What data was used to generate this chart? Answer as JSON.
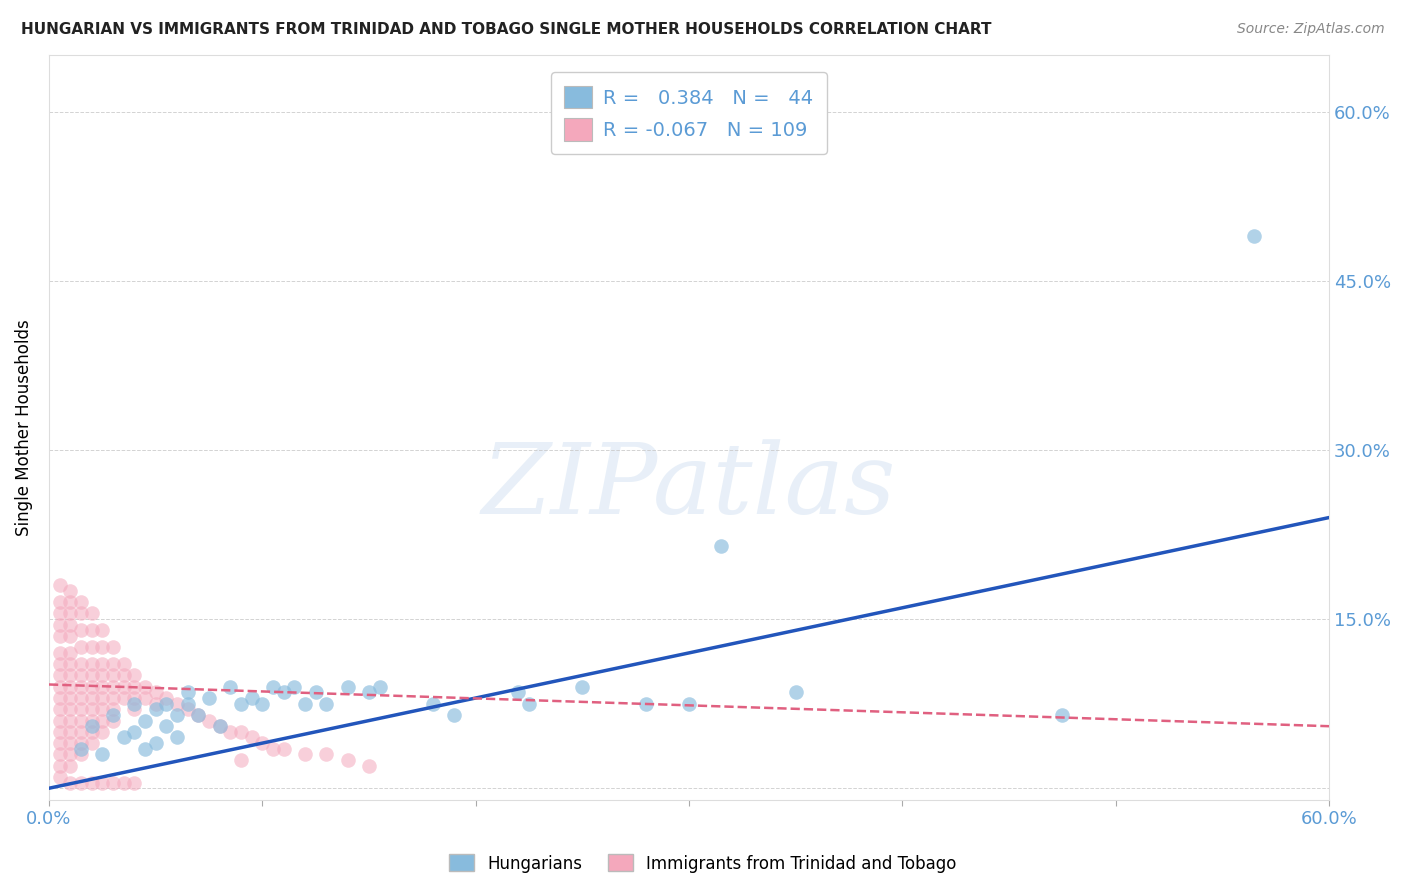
{
  "title": "HUNGARIAN VS IMMIGRANTS FROM TRINIDAD AND TOBAGO SINGLE MOTHER HOUSEHOLDS CORRELATION CHART",
  "source": "Source: ZipAtlas.com",
  "ylabel": "Single Mother Households",
  "xlim": [
    0.0,
    0.6
  ],
  "ylim": [
    -0.01,
    0.65
  ],
  "xticks": [
    0.0,
    0.1,
    0.2,
    0.3,
    0.4,
    0.5,
    0.6
  ],
  "yticks": [
    0.0,
    0.15,
    0.3,
    0.45,
    0.6
  ],
  "ytick_labels_right": [
    "",
    "15.0%",
    "30.0%",
    "45.0%",
    "60.0%"
  ],
  "xtick_labels": [
    "0.0%",
    "",
    "",
    "",
    "",
    "",
    "60.0%"
  ],
  "axis_color": "#5b9bd5",
  "grid_color": "#c8c8c8",
  "blue_color": "#88bbdd",
  "pink_color": "#f4a8bc",
  "blue_line_color": "#2255bb",
  "pink_line_color": "#e06080",
  "legend_R_blue": " 0.384",
  "legend_N_blue": " 44",
  "legend_R_pink": "-0.067",
  "legend_N_pink": "109",
  "legend_label_blue": "Hungarians",
  "legend_label_pink": "Immigrants from Trinidad and Tobago",
  "watermark": "ZIPatlas",
  "blue_scatter": [
    [
      0.015,
      0.035
    ],
    [
      0.02,
      0.055
    ],
    [
      0.025,
      0.03
    ],
    [
      0.03,
      0.065
    ],
    [
      0.035,
      0.045
    ],
    [
      0.04,
      0.075
    ],
    [
      0.04,
      0.05
    ],
    [
      0.045,
      0.06
    ],
    [
      0.045,
      0.035
    ],
    [
      0.05,
      0.07
    ],
    [
      0.05,
      0.04
    ],
    [
      0.055,
      0.075
    ],
    [
      0.055,
      0.055
    ],
    [
      0.06,
      0.065
    ],
    [
      0.06,
      0.045
    ],
    [
      0.065,
      0.085
    ],
    [
      0.065,
      0.075
    ],
    [
      0.07,
      0.065
    ],
    [
      0.075,
      0.08
    ],
    [
      0.08,
      0.055
    ],
    [
      0.085,
      0.09
    ],
    [
      0.09,
      0.075
    ],
    [
      0.095,
      0.08
    ],
    [
      0.1,
      0.075
    ],
    [
      0.105,
      0.09
    ],
    [
      0.11,
      0.085
    ],
    [
      0.115,
      0.09
    ],
    [
      0.12,
      0.075
    ],
    [
      0.125,
      0.085
    ],
    [
      0.13,
      0.075
    ],
    [
      0.14,
      0.09
    ],
    [
      0.15,
      0.085
    ],
    [
      0.155,
      0.09
    ],
    [
      0.18,
      0.075
    ],
    [
      0.19,
      0.065
    ],
    [
      0.22,
      0.085
    ],
    [
      0.225,
      0.075
    ],
    [
      0.25,
      0.09
    ],
    [
      0.28,
      0.075
    ],
    [
      0.3,
      0.075
    ],
    [
      0.315,
      0.215
    ],
    [
      0.35,
      0.085
    ],
    [
      0.475,
      0.065
    ],
    [
      0.565,
      0.49
    ]
  ],
  "pink_scatter": [
    [
      0.005,
      0.18
    ],
    [
      0.005,
      0.165
    ],
    [
      0.005,
      0.155
    ],
    [
      0.005,
      0.145
    ],
    [
      0.005,
      0.135
    ],
    [
      0.005,
      0.12
    ],
    [
      0.005,
      0.11
    ],
    [
      0.005,
      0.1
    ],
    [
      0.005,
      0.09
    ],
    [
      0.005,
      0.08
    ],
    [
      0.005,
      0.07
    ],
    [
      0.005,
      0.06
    ],
    [
      0.005,
      0.05
    ],
    [
      0.005,
      0.04
    ],
    [
      0.005,
      0.03
    ],
    [
      0.005,
      0.02
    ],
    [
      0.01,
      0.175
    ],
    [
      0.01,
      0.165
    ],
    [
      0.01,
      0.155
    ],
    [
      0.01,
      0.145
    ],
    [
      0.01,
      0.135
    ],
    [
      0.01,
      0.12
    ],
    [
      0.01,
      0.11
    ],
    [
      0.01,
      0.1
    ],
    [
      0.01,
      0.09
    ],
    [
      0.01,
      0.08
    ],
    [
      0.01,
      0.07
    ],
    [
      0.01,
      0.06
    ],
    [
      0.01,
      0.05
    ],
    [
      0.01,
      0.04
    ],
    [
      0.01,
      0.03
    ],
    [
      0.01,
      0.02
    ],
    [
      0.015,
      0.165
    ],
    [
      0.015,
      0.155
    ],
    [
      0.015,
      0.14
    ],
    [
      0.015,
      0.125
    ],
    [
      0.015,
      0.11
    ],
    [
      0.015,
      0.1
    ],
    [
      0.015,
      0.09
    ],
    [
      0.015,
      0.08
    ],
    [
      0.015,
      0.07
    ],
    [
      0.015,
      0.06
    ],
    [
      0.015,
      0.05
    ],
    [
      0.015,
      0.04
    ],
    [
      0.015,
      0.03
    ],
    [
      0.02,
      0.155
    ],
    [
      0.02,
      0.14
    ],
    [
      0.02,
      0.125
    ],
    [
      0.02,
      0.11
    ],
    [
      0.02,
      0.1
    ],
    [
      0.02,
      0.09
    ],
    [
      0.02,
      0.08
    ],
    [
      0.02,
      0.07
    ],
    [
      0.02,
      0.06
    ],
    [
      0.02,
      0.05
    ],
    [
      0.02,
      0.04
    ],
    [
      0.025,
      0.14
    ],
    [
      0.025,
      0.125
    ],
    [
      0.025,
      0.11
    ],
    [
      0.025,
      0.1
    ],
    [
      0.025,
      0.09
    ],
    [
      0.025,
      0.08
    ],
    [
      0.025,
      0.07
    ],
    [
      0.025,
      0.06
    ],
    [
      0.025,
      0.05
    ],
    [
      0.03,
      0.125
    ],
    [
      0.03,
      0.11
    ],
    [
      0.03,
      0.1
    ],
    [
      0.03,
      0.09
    ],
    [
      0.03,
      0.08
    ],
    [
      0.03,
      0.07
    ],
    [
      0.03,
      0.06
    ],
    [
      0.035,
      0.11
    ],
    [
      0.035,
      0.1
    ],
    [
      0.035,
      0.09
    ],
    [
      0.035,
      0.08
    ],
    [
      0.04,
      0.1
    ],
    [
      0.04,
      0.09
    ],
    [
      0.04,
      0.08
    ],
    [
      0.04,
      0.07
    ],
    [
      0.045,
      0.09
    ],
    [
      0.045,
      0.08
    ],
    [
      0.05,
      0.085
    ],
    [
      0.05,
      0.075
    ],
    [
      0.055,
      0.08
    ],
    [
      0.06,
      0.075
    ],
    [
      0.065,
      0.07
    ],
    [
      0.07,
      0.065
    ],
    [
      0.075,
      0.06
    ],
    [
      0.08,
      0.055
    ],
    [
      0.085,
      0.05
    ],
    [
      0.09,
      0.05
    ],
    [
      0.095,
      0.045
    ],
    [
      0.1,
      0.04
    ],
    [
      0.105,
      0.035
    ],
    [
      0.11,
      0.035
    ],
    [
      0.12,
      0.03
    ],
    [
      0.13,
      0.03
    ],
    [
      0.14,
      0.025
    ],
    [
      0.15,
      0.02
    ],
    [
      0.005,
      0.01
    ],
    [
      0.01,
      0.005
    ],
    [
      0.015,
      0.005
    ],
    [
      0.02,
      0.005
    ],
    [
      0.025,
      0.005
    ],
    [
      0.03,
      0.005
    ],
    [
      0.035,
      0.005
    ],
    [
      0.04,
      0.005
    ],
    [
      0.09,
      0.025
    ]
  ],
  "blue_trendline_x": [
    0.0,
    0.6
  ],
  "blue_trendline_y": [
    0.0,
    0.24
  ],
  "pink_trendline_x": [
    0.0,
    0.6
  ],
  "pink_trendline_y": [
    0.092,
    0.055
  ]
}
